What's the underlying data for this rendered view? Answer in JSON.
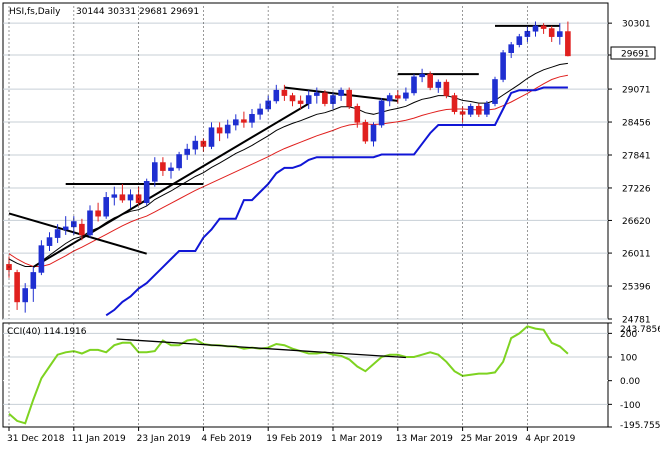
{
  "header": {
    "symbol": "HSI,fs,Daily",
    "ohlc": "30144 30331 29681 29691"
  },
  "colors": {
    "bull": "#1f2fd1",
    "bear": "#e0201e",
    "grid": "#c7cfd6",
    "ema": "#000000",
    "sma": "#e0201e",
    "stop": "#1016d6",
    "trend": "#000000",
    "cci": "#7ed321",
    "price_box": "#ffffff"
  },
  "chart_data": [
    {
      "type": "candlestick",
      "panel": "price",
      "ylim": [
        24781,
        30621
      ],
      "x": [
        "31 Dec 2018",
        "2 Jan",
        "3 Jan",
        "4 Jan",
        "7 Jan",
        "8 Jan",
        "9 Jan",
        "10 Jan",
        "11 Jan 2019",
        "14 Jan",
        "15 Jan",
        "16 Jan",
        "17 Jan",
        "18 Jan",
        "21 Jan",
        "22 Jan",
        "23 Jan 2019",
        "24 Jan",
        "25 Jan",
        "28 Jan",
        "29 Jan",
        "30 Jan",
        "31 Jan",
        "1 Feb",
        "4 Feb 2019",
        "8 Feb",
        "11 Feb",
        "12 Feb",
        "13 Feb",
        "14 Feb",
        "15 Feb",
        "18 Feb",
        "19 Feb 2019",
        "20 Feb",
        "21 Feb",
        "22 Feb",
        "25 Feb",
        "26 Feb",
        "27 Feb",
        "28 Feb",
        "1 Mar 2019",
        "4 Mar",
        "5 Mar",
        "6 Mar",
        "7 Mar",
        "8 Mar",
        "11 Mar",
        "12 Mar",
        "13 Mar 2019",
        "14 Mar",
        "15 Mar",
        "18 Mar",
        "19 Mar",
        "20 Mar",
        "21 Mar",
        "22 Mar",
        "25 Mar 2019",
        "26 Mar",
        "27 Mar",
        "28 Mar",
        "29 Mar",
        "1 Apr",
        "2 Apr",
        "3 Apr",
        "4 Apr 2019",
        "8 Apr",
        "9 Apr",
        "10 Apr",
        "11 Apr",
        "12 Apr"
      ],
      "ohlc": [
        [
          25800,
          25950,
          25550,
          25700
        ],
        [
          25650,
          25700,
          24950,
          25100
        ],
        [
          25100,
          25450,
          24900,
          25350
        ],
        [
          25350,
          25750,
          25100,
          25650
        ],
        [
          25650,
          26250,
          25600,
          26150
        ],
        [
          26150,
          26400,
          26050,
          26300
        ],
        [
          26300,
          26550,
          26200,
          26450
        ],
        [
          26450,
          26700,
          26350,
          26500
        ],
        [
          26500,
          26700,
          26350,
          26600
        ],
        [
          26550,
          26650,
          26250,
          26350
        ],
        [
          26350,
          26900,
          26300,
          26800
        ],
        [
          26800,
          26950,
          26600,
          26700
        ],
        [
          26700,
          27150,
          26650,
          27050
        ],
        [
          27050,
          27250,
          26900,
          27100
        ],
        [
          27100,
          27300,
          26950,
          27000
        ],
        [
          27000,
          27200,
          26850,
          27100
        ],
        [
          27100,
          27250,
          26900,
          26950
        ],
        [
          26950,
          27400,
          26900,
          27350
        ],
        [
          27350,
          27800,
          27250,
          27700
        ],
        [
          27700,
          27800,
          27450,
          27550
        ],
        [
          27550,
          27700,
          27400,
          27600
        ],
        [
          27600,
          27900,
          27550,
          27850
        ],
        [
          27850,
          28050,
          27750,
          27950
        ],
        [
          27950,
          28200,
          27850,
          28100
        ],
        [
          28100,
          28150,
          27900,
          28000
        ],
        [
          28000,
          28450,
          27950,
          28350
        ],
        [
          28350,
          28450,
          28100,
          28250
        ],
        [
          28250,
          28500,
          28150,
          28400
        ],
        [
          28400,
          28600,
          28300,
          28500
        ],
        [
          28500,
          28650,
          28350,
          28450
        ],
        [
          28450,
          28700,
          28350,
          28600
        ],
        [
          28600,
          28800,
          28500,
          28700
        ],
        [
          28700,
          28950,
          28650,
          28850
        ],
        [
          28850,
          29150,
          28800,
          29050
        ],
        [
          29050,
          29150,
          28850,
          28950
        ],
        [
          28950,
          29000,
          28750,
          28850
        ],
        [
          28850,
          28950,
          28700,
          28800
        ],
        [
          28800,
          29050,
          28700,
          28950
        ],
        [
          28950,
          29100,
          28800,
          29000
        ],
        [
          29000,
          29050,
          28750,
          28800
        ],
        [
          28800,
          29000,
          28700,
          28950
        ],
        [
          28950,
          29100,
          28850,
          29050
        ],
        [
          29050,
          29100,
          28700,
          28750
        ],
        [
          28750,
          28800,
          28350,
          28450
        ],
        [
          28450,
          28500,
          28050,
          28100
        ],
        [
          28100,
          28450,
          28000,
          28400
        ],
        [
          28400,
          28900,
          28350,
          28850
        ],
        [
          28850,
          29000,
          28750,
          28950
        ],
        [
          28950,
          29050,
          28800,
          28900
        ],
        [
          28900,
          29100,
          28850,
          29000
        ],
        [
          29000,
          29350,
          28950,
          29300
        ],
        [
          29300,
          29450,
          29200,
          29350
        ],
        [
          29350,
          29400,
          29050,
          29100
        ],
        [
          29100,
          29250,
          29000,
          29200
        ],
        [
          29200,
          29250,
          28900,
          28950
        ],
        [
          28950,
          29000,
          28600,
          28650
        ],
        [
          28650,
          28750,
          28450,
          28600
        ],
        [
          28600,
          28800,
          28550,
          28750
        ],
        [
          28750,
          28800,
          28550,
          28600
        ],
        [
          28600,
          28850,
          28550,
          28800
        ],
        [
          28800,
          29300,
          28750,
          29250
        ],
        [
          29250,
          29800,
          29200,
          29750
        ],
        [
          29750,
          29950,
          29650,
          29900
        ],
        [
          29900,
          30100,
          29850,
          30050
        ],
        [
          30050,
          30250,
          29950,
          30150
        ],
        [
          30150,
          30331,
          30050,
          30250
        ],
        [
          30250,
          30300,
          30100,
          30200
        ],
        [
          30200,
          30250,
          29950,
          30050
        ],
        [
          30050,
          30300,
          29900,
          30144
        ],
        [
          30144,
          30331,
          29681,
          29691
        ]
      ],
      "price_tick_labels": [
        "30301",
        "29707",
        "29071",
        "28456",
        "27841",
        "27226",
        "26620",
        "26011",
        "25396",
        "24781"
      ],
      "last_price_label": "29691",
      "date_tick_labels": [
        "31 Dec 2018",
        "11 Jan 2019",
        "23 Jan 2019",
        "4 Feb 2019",
        "19 Feb 2019",
        "1 Mar 2019",
        "13 Mar 2019",
        "25 Mar 2019",
        "4 Apr 2019"
      ],
      "series": [
        {
          "role": "ema",
          "values": [
            25900,
            25820,
            25760,
            25760,
            25860,
            25970,
            26080,
            26190,
            26280,
            26320,
            26420,
            26480,
            26580,
            26670,
            26730,
            26790,
            26820,
            26890,
            27010,
            27090,
            27170,
            27260,
            27350,
            27440,
            27510,
            27610,
            27690,
            27780,
            27870,
            27940,
            28020,
            28110,
            28200,
            28300,
            28370,
            28430,
            28480,
            28540,
            28600,
            28630,
            28680,
            28740,
            28740,
            28700,
            28630,
            28600,
            28640,
            28680,
            28710,
            28750,
            28820,
            28880,
            28910,
            28950,
            28950,
            28910,
            28860,
            28840,
            28810,
            28810,
            28860,
            28960,
            29060,
            29160,
            29270,
            29360,
            29430,
            29480,
            29530,
            29550
          ]
        },
        {
          "role": "sma",
          "values": [
            26000,
            25900,
            25820,
            25760,
            25760,
            25800,
            25880,
            25960,
            26050,
            26120,
            26200,
            26280,
            26360,
            26440,
            26520,
            26590,
            26650,
            26700,
            26780,
            26860,
            26940,
            27020,
            27100,
            27180,
            27250,
            27320,
            27390,
            27460,
            27530,
            27600,
            27670,
            27740,
            27810,
            27890,
            27960,
            28020,
            28080,
            28140,
            28200,
            28250,
            28300,
            28360,
            28400,
            28420,
            28420,
            28410,
            28420,
            28440,
            28460,
            28490,
            28530,
            28580,
            28620,
            28660,
            28690,
            28700,
            28700,
            28690,
            28680,
            28680,
            28700,
            28760,
            28830,
            28910,
            28990,
            29080,
            29170,
            29250,
            29300,
            29330
          ]
        },
        {
          "role": "stop",
          "values": [
            null,
            null,
            null,
            null,
            null,
            null,
            null,
            null,
            null,
            null,
            null,
            null,
            24850,
            24950,
            25100,
            25200,
            25350,
            25450,
            25600,
            25750,
            25900,
            26050,
            26050,
            26050,
            26300,
            26450,
            26650,
            26650,
            26650,
            27000,
            27000,
            27150,
            27300,
            27500,
            27600,
            27600,
            27650,
            27750,
            27800,
            27800,
            27800,
            27800,
            27800,
            27800,
            27800,
            27800,
            27850,
            27850,
            27850,
            27850,
            27850,
            28050,
            28250,
            28400,
            28400,
            28400,
            28400,
            28400,
            28400,
            28400,
            28400,
            28700,
            29000,
            29050,
            29050,
            29050,
            29100,
            29100,
            29100,
            29100
          ]
        }
      ],
      "trend_lines": [
        {
          "from": [
            "31 Dec 2018",
            26750
          ],
          "to": [
            "24 Jan",
            26000
          ]
        },
        {
          "from": [
            "4 Jan",
            25750
          ],
          "to": [
            "26 Feb",
            28800
          ]
        },
        {
          "from": [
            "21 Feb",
            29100
          ],
          "to": [
            "13 Mar 2019",
            28850
          ]
        },
        {
          "from": [
            "10 Jan",
            27300
          ],
          "to": [
            "4 Feb 2019",
            27300
          ]
        },
        {
          "from": [
            "13 Mar 2019",
            29350
          ],
          "to": [
            "27 Mar",
            29350
          ]
        },
        {
          "from": [
            "29 Mar",
            30250
          ],
          "to": [
            "11 Apr",
            30250
          ]
        }
      ]
    },
    {
      "type": "line",
      "panel": "indicator",
      "indicator_label": "CCI(40) 114.1916",
      "ylim": [
        -195.7557,
        243.7856
      ],
      "y_tick_labels": [
        "243.7856",
        "200",
        "100",
        "0.00",
        "-100",
        "-195.7557"
      ],
      "levels": [
        200,
        100,
        0,
        -100
      ],
      "values": [
        -140,
        -170,
        -180,
        -80,
        10,
        60,
        110,
        120,
        125,
        115,
        130,
        130,
        120,
        150,
        160,
        160,
        120,
        120,
        125,
        170,
        150,
        150,
        170,
        175,
        155,
        150,
        150,
        145,
        145,
        135,
        140,
        135,
        140,
        155,
        150,
        135,
        125,
        115,
        115,
        120,
        110,
        105,
        90,
        60,
        40,
        70,
        100,
        110,
        110,
        100,
        100,
        110,
        120,
        110,
        80,
        40,
        20,
        25,
        30,
        30,
        35,
        80,
        180,
        200,
        230,
        220,
        215,
        160,
        145,
        114
      ]
    }
  ]
}
